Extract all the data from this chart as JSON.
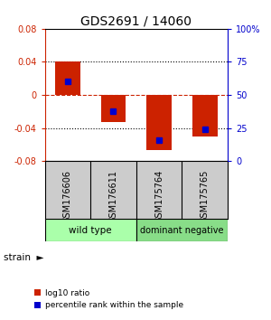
{
  "title": "GDS2691 / 14060",
  "samples": [
    "GSM176606",
    "GSM176611",
    "GSM175764",
    "GSM175765"
  ],
  "log10_ratio": [
    0.04,
    -0.033,
    -0.067,
    -0.05
  ],
  "percentile_rank": [
    0.6,
    0.38,
    0.16,
    0.24
  ],
  "ylim": [
    -0.08,
    0.08
  ],
  "yticks_left": [
    -0.08,
    -0.04,
    0,
    0.04,
    0.08
  ],
  "yticks_right_pct": [
    0,
    25,
    50,
    75,
    100
  ],
  "bar_color": "#CC2200",
  "dot_color": "#0000CC",
  "zero_line_color": "#CC2200",
  "bg_color": "#ffffff",
  "title_color": "#000000",
  "left_axis_color": "#CC2200",
  "right_axis_color": "#0000CC",
  "wt_color": "#aaffaa",
  "dn_color": "#88dd88"
}
